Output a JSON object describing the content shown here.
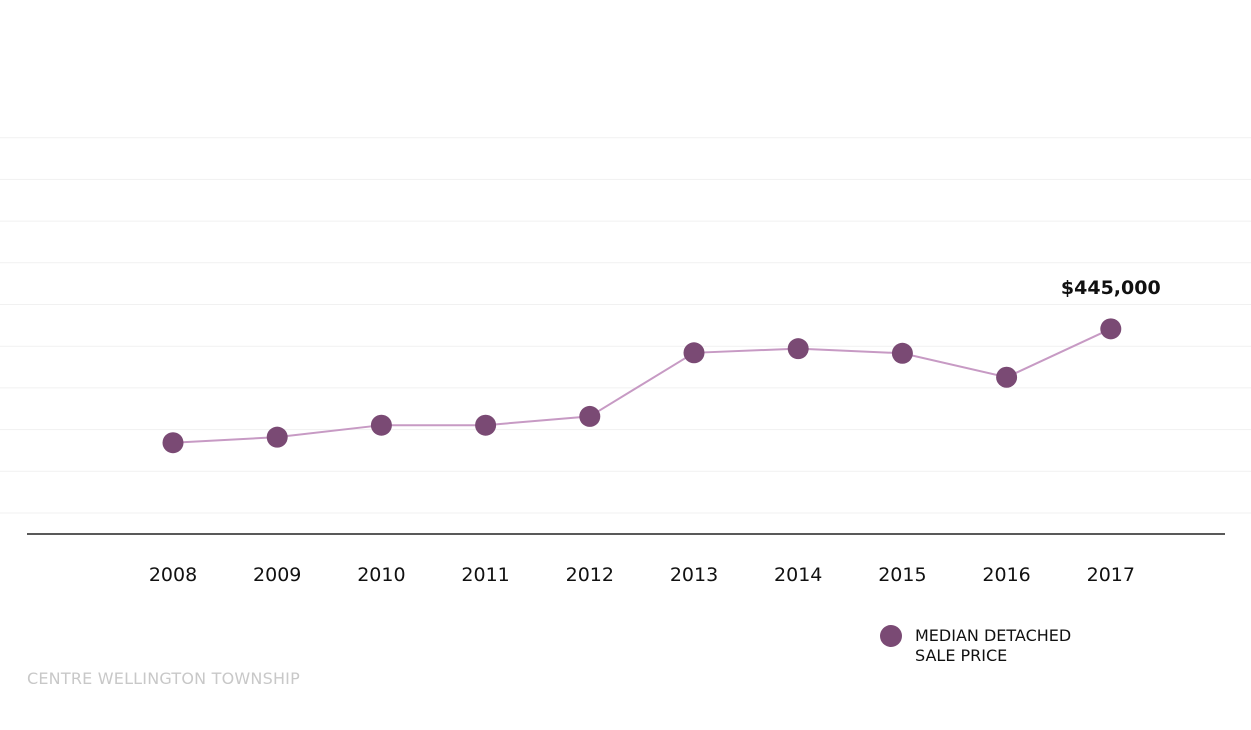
{
  "colors": {
    "marker": "#7a4a74",
    "line": "#c79ac4",
    "grid": "#f1f1f1",
    "axis": "#222222",
    "footer": "#c8c8c8"
  },
  "chart_data": {
    "type": "line",
    "title": "",
    "xlabel": "",
    "ylabel": "",
    "grid": true,
    "legend_position": "bottom-right",
    "categories": [
      "2008",
      "2009",
      "2010",
      "2011",
      "2012",
      "2013",
      "2014",
      "2015",
      "2016",
      "2017"
    ],
    "ylim": [
      0,
      950000
    ],
    "series": [
      {
        "name": "MEDIAN DETACHED SALE PRICE",
        "values": [
          198000,
          210000,
          236000,
          236000,
          255000,
          393000,
          402000,
          392000,
          340000,
          445000
        ]
      }
    ],
    "annotations": [
      {
        "category": "2017",
        "text": "$445,000"
      }
    ]
  },
  "legend": {
    "label": "MEDIAN DETACHED\nSALE PRICE"
  },
  "footer": {
    "label": "CENTRE WELLINGTON TOWNSHIP"
  }
}
